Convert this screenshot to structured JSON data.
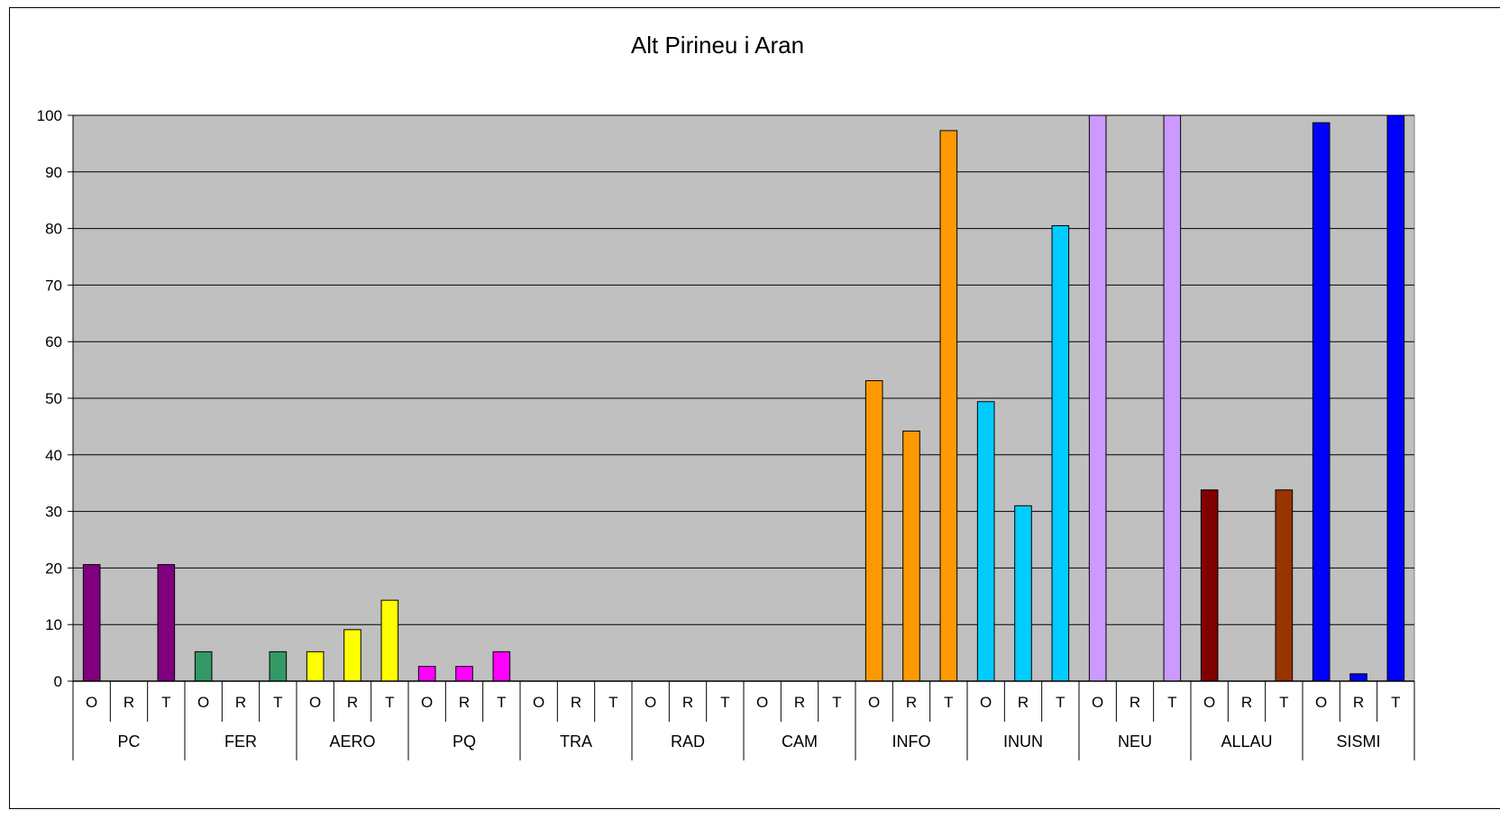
{
  "chart_data": {
    "type": "bar",
    "title": "Alt Pirineu i Aran",
    "xlabel": "",
    "ylabel": "",
    "ylim": [
      0,
      100
    ],
    "yticks": [
      0,
      10,
      20,
      30,
      40,
      50,
      60,
      70,
      80,
      90,
      100
    ],
    "grid": true,
    "legend": "none",
    "plot_background": "#c0c0c0",
    "subcategories": [
      "O",
      "R",
      "T"
    ],
    "groups": [
      {
        "name": "PC",
        "values": [
          20.6,
          0,
          20.6
        ],
        "colors": [
          "#800080",
          "#800080",
          "#800080"
        ]
      },
      {
        "name": "FER",
        "values": [
          5.2,
          0,
          5.2
        ],
        "colors": [
          "#339966",
          "#339966",
          "#339966"
        ]
      },
      {
        "name": "AERO",
        "values": [
          5.2,
          9.1,
          14.3
        ],
        "colors": [
          "#ffff00",
          "#ffff00",
          "#ffff00"
        ]
      },
      {
        "name": "PQ",
        "values": [
          2.6,
          2.6,
          5.2
        ],
        "colors": [
          "#ff00ff",
          "#ff00ff",
          "#ff00ff"
        ]
      },
      {
        "name": "TRA",
        "values": [
          0,
          0,
          0
        ],
        "colors": [
          "#808080",
          "#808080",
          "#808080"
        ]
      },
      {
        "name": "RAD",
        "values": [
          0,
          0,
          0
        ],
        "colors": [
          "#808080",
          "#808080",
          "#808080"
        ]
      },
      {
        "name": "CAM",
        "values": [
          0,
          0,
          0
        ],
        "colors": [
          "#808080",
          "#808080",
          "#808080"
        ]
      },
      {
        "name": "INFO",
        "values": [
          53.1,
          44.2,
          97.3
        ],
        "colors": [
          "#ff9900",
          "#ff9900",
          "#ff9900"
        ]
      },
      {
        "name": "INUN",
        "values": [
          49.4,
          31.0,
          80.5
        ],
        "colors": [
          "#00ccff",
          "#00ccff",
          "#00ccff"
        ]
      },
      {
        "name": "NEU",
        "values": [
          100,
          0,
          100
        ],
        "colors": [
          "#cc99ff",
          "#cc99ff",
          "#cc99ff"
        ]
      },
      {
        "name": "ALLAU",
        "values": [
          33.8,
          0,
          33.8
        ],
        "colors": [
          "#800000",
          "#800000",
          "#993300"
        ]
      },
      {
        "name": "SISMI",
        "values": [
          98.7,
          1.3,
          100
        ],
        "colors": [
          "#0000ff",
          "#0000ff",
          "#0000ff"
        ]
      }
    ]
  }
}
